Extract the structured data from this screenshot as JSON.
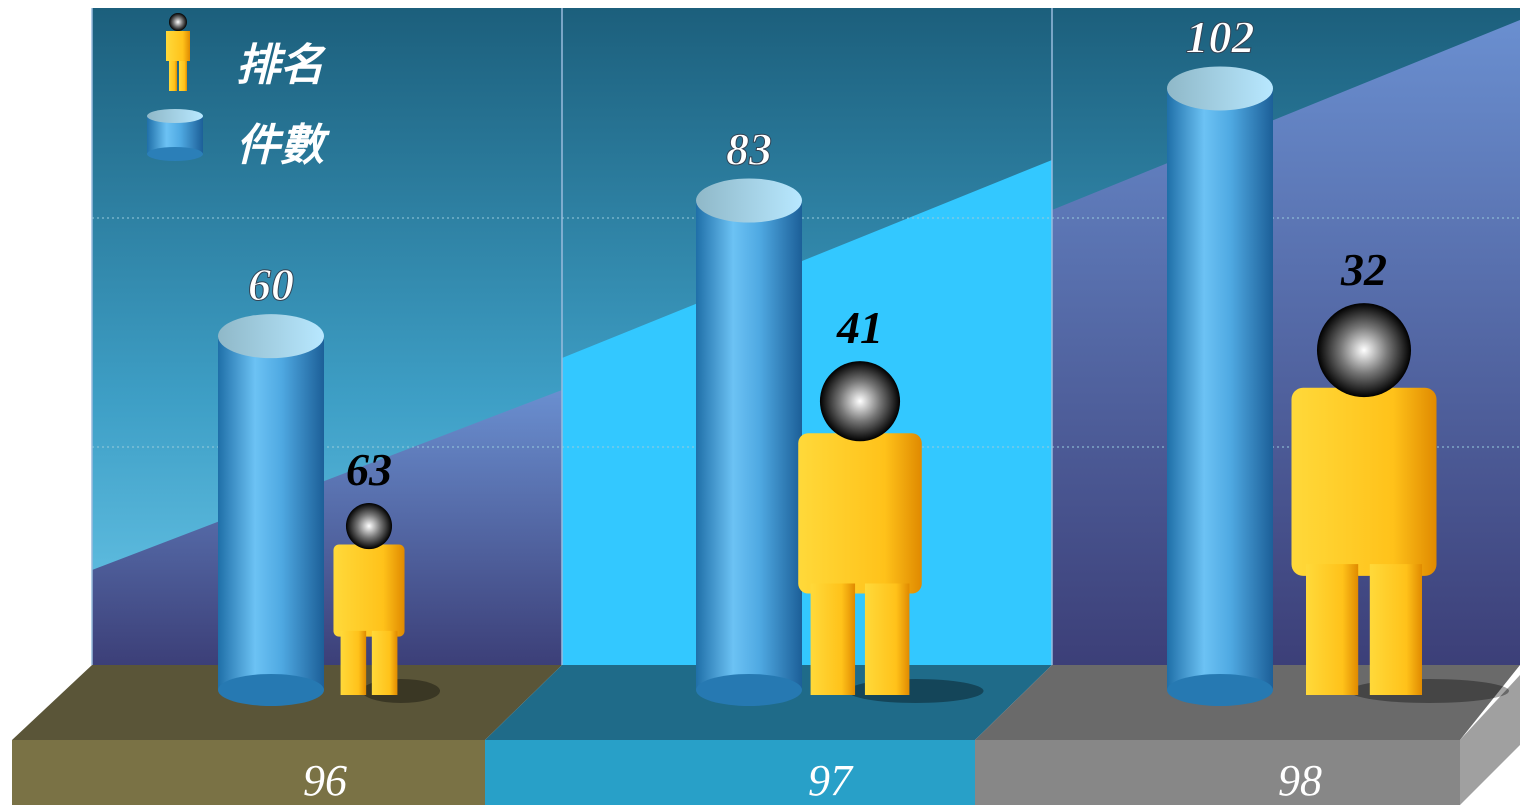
{
  "chart_data": {
    "type": "bar",
    "categories": [
      "96",
      "97",
      "98"
    ],
    "series": [
      {
        "name": "件數",
        "color": "#5ab4ec",
        "values": [
          60,
          83,
          102
        ]
      },
      {
        "name": "排名",
        "color": "#f5b800",
        "values": [
          63,
          41,
          32
        ],
        "axis": "y2"
      }
    ],
    "ylim": [
      0,
      117
    ],
    "y2lim": [
      92,
      -15
    ]
  }
}
